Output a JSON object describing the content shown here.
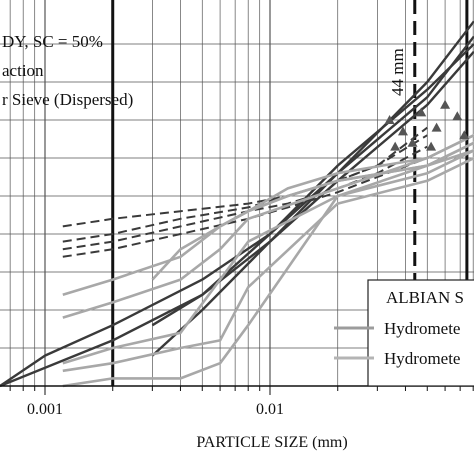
{
  "chart_data": {
    "type": "line",
    "title": "",
    "xlabel": "PARTICLE SIZE (mm)",
    "ylabel": "",
    "x_scale": "log",
    "xlim": [
      0.0004,
      0.11
    ],
    "ylim": [
      0,
      100
    ],
    "grid": true,
    "x_ticks": [
      {
        "value": 0.001,
        "label": "0.001"
      },
      {
        "value": 0.01,
        "label": "0.01"
      }
    ],
    "notes": [
      "DY, SC = 50%",
      "action",
      "r Sieve (Dispersed)"
    ],
    "reference_lines": [
      {
        "x": 0.002,
        "style": "solid",
        "label": ""
      },
      {
        "x": 0.044,
        "style": "dashed",
        "label": "44 mm"
      },
      {
        "x": 0.075,
        "style": "solid",
        "label": ""
      }
    ],
    "legend": {
      "title": "ALBIAN S",
      "position": "bottom-right",
      "entries": [
        "Hydromete",
        "Hydromete"
      ]
    },
    "colors": {
      "dark_curves": "#3a3a3a",
      "light_curves": "#a8a8a8",
      "legend_line_1": "#9c9c9c",
      "legend_line_2": "#b4b4b4",
      "grid": "#555555"
    },
    "series": [
      {
        "style": "dark",
        "x": [
          0.0004,
          0.001,
          0.002,
          0.005,
          0.01,
          0.02,
          0.05,
          0.09
        ],
        "y": [
          0,
          8,
          16,
          28,
          40,
          56,
          76,
          92
        ]
      },
      {
        "style": "dark",
        "x": [
          0.0004,
          0.002,
          0.005,
          0.01,
          0.02,
          0.05,
          0.09
        ],
        "y": [
          0,
          12,
          24,
          38,
          54,
          74,
          88
        ]
      },
      {
        "style": "dark",
        "x": [
          0.003,
          0.005,
          0.01,
          0.02,
          0.05,
          0.09
        ],
        "y": [
          8,
          20,
          38,
          56,
          80,
          96
        ]
      },
      {
        "style": "dark",
        "x": [
          0.003,
          0.005,
          0.01,
          0.02,
          0.05,
          0.09
        ],
        "y": [
          16,
          24,
          40,
          58,
          78,
          90
        ]
      },
      {
        "style": "dark-dashed",
        "x": [
          0.0012,
          0.002,
          0.004,
          0.008,
          0.012,
          0.02,
          0.03,
          0.05
        ],
        "y": [
          42,
          44,
          46,
          48,
          50,
          54,
          58,
          68
        ]
      },
      {
        "style": "dark-dashed",
        "x": [
          0.0012,
          0.002,
          0.004,
          0.008,
          0.012,
          0.02,
          0.03,
          0.05
        ],
        "y": [
          38,
          40,
          44,
          47,
          50,
          54,
          58,
          66
        ]
      },
      {
        "style": "dark-dashed",
        "x": [
          0.0012,
          0.002,
          0.004,
          0.008,
          0.012,
          0.02,
          0.03,
          0.05
        ],
        "y": [
          36,
          38,
          42,
          46,
          48,
          52,
          56,
          63
        ]
      },
      {
        "style": "dark-dashed",
        "x": [
          0.0012,
          0.002,
          0.004,
          0.008,
          0.012,
          0.02,
          0.03,
          0.05
        ],
        "y": [
          34,
          36,
          40,
          44,
          47,
          51,
          55,
          60
        ]
      },
      {
        "style": "light",
        "x": [
          0.0012,
          0.002,
          0.004,
          0.006,
          0.008,
          0.02,
          0.05,
          0.09
        ],
        "y": [
          0,
          2,
          2,
          6,
          16,
          50,
          56,
          62
        ]
      },
      {
        "style": "light",
        "x": [
          0.0012,
          0.002,
          0.004,
          0.006,
          0.008,
          0.02,
          0.05,
          0.09
        ],
        "y": [
          4,
          6,
          10,
          12,
          26,
          48,
          54,
          60
        ]
      },
      {
        "style": "light",
        "x": [
          0.0012,
          0.002,
          0.004,
          0.006,
          0.008,
          0.02,
          0.05,
          0.09
        ],
        "y": [
          6,
          10,
          14,
          28,
          38,
          50,
          58,
          64
        ]
      },
      {
        "style": "light",
        "x": [
          0.0012,
          0.002,
          0.004,
          0.006,
          0.008,
          0.02,
          0.05,
          0.09
        ],
        "y": [
          18,
          22,
          28,
          36,
          44,
          52,
          60,
          66
        ]
      },
      {
        "style": "light",
        "x": [
          0.0012,
          0.002,
          0.004,
          0.006,
          0.008,
          0.012,
          0.02,
          0.05,
          0.09
        ],
        "y": [
          24,
          28,
          34,
          42,
          46,
          52,
          56,
          60,
          66
        ]
      },
      {
        "style": "light",
        "x": [
          0.003,
          0.004,
          0.006,
          0.008,
          0.012,
          0.02,
          0.05,
          0.09
        ],
        "y": [
          28,
          36,
          42,
          46,
          50,
          54,
          58,
          64
        ]
      },
      {
        "style": "light",
        "x": [
          0.006,
          0.008,
          0.012,
          0.02,
          0.05,
          0.09
        ],
        "y": [
          42,
          46,
          50,
          54,
          58,
          62
        ]
      }
    ],
    "triangles": [
      {
        "x": 0.034,
        "y": 70
      },
      {
        "x": 0.039,
        "y": 67
      },
      {
        "x": 0.047,
        "y": 72
      },
      {
        "x": 0.055,
        "y": 68
      },
      {
        "x": 0.06,
        "y": 74
      },
      {
        "x": 0.068,
        "y": 71
      },
      {
        "x": 0.073,
        "y": 66
      },
      {
        "x": 0.036,
        "y": 63
      },
      {
        "x": 0.043,
        "y": 64
      },
      {
        "x": 0.052,
        "y": 63
      }
    ]
  }
}
